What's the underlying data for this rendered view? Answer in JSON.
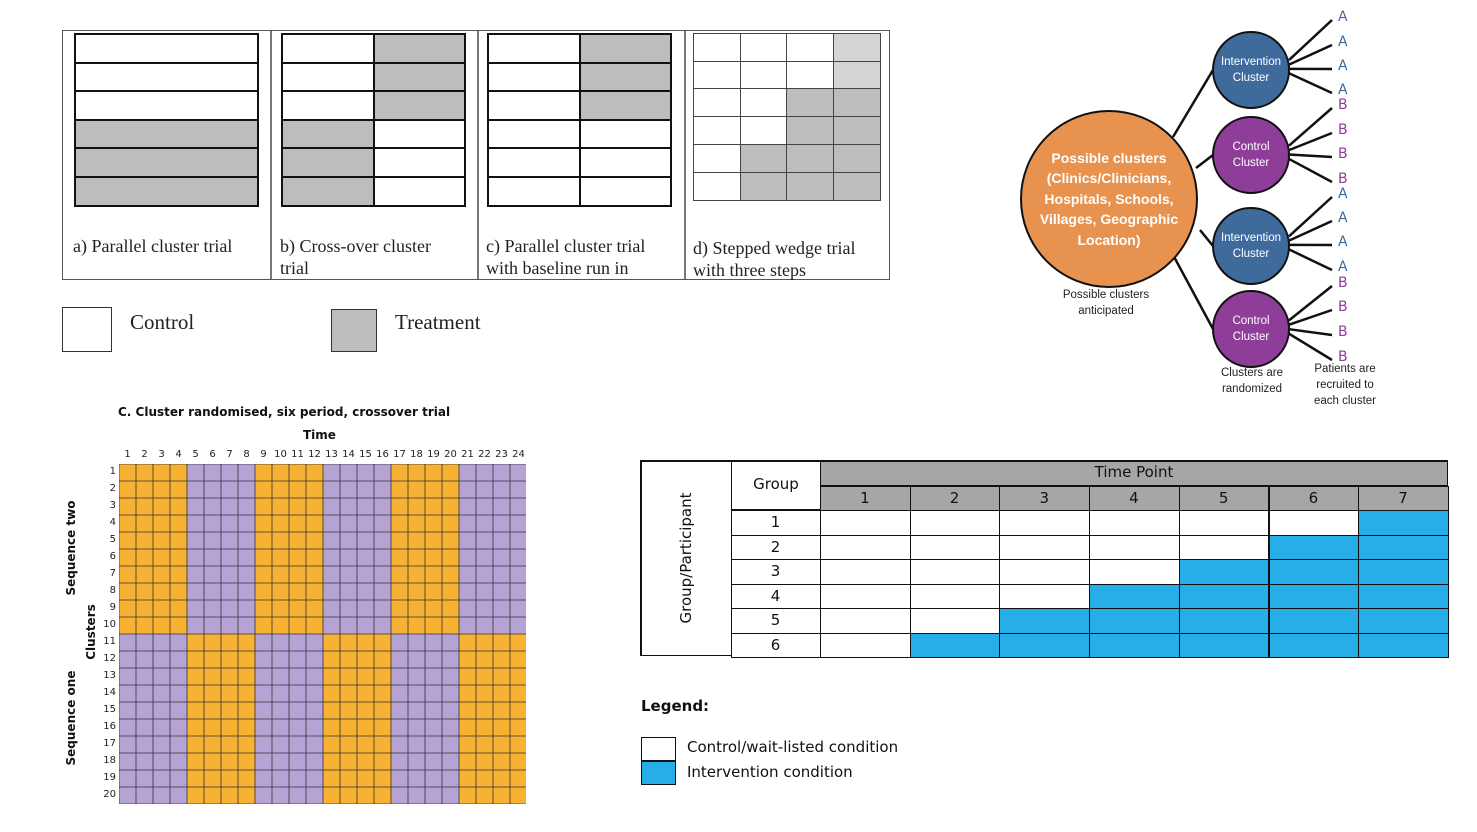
{
  "design_panels": {
    "captions": [
      [
        "a) Parallel cluster trial"
      ],
      [
        "b) Cross-over cluster",
        "trial"
      ],
      [
        "c) Parallel cluster trial",
        "with baseline run in"
      ],
      [
        "d) Stepped wedge trial",
        "with three steps"
      ]
    ],
    "parallel_rows": [
      "C",
      "C",
      "C",
      "T",
      "T",
      "T"
    ],
    "crossover_rows": [
      [
        "C",
        "T"
      ],
      [
        "C",
        "T"
      ],
      [
        "C",
        "T"
      ],
      [
        "T",
        "C"
      ],
      [
        "T",
        "C"
      ],
      [
        "T",
        "C"
      ]
    ],
    "baseline_rows": [
      [
        "C",
        "T"
      ],
      [
        "C",
        "T"
      ],
      [
        "C",
        "T"
      ],
      [
        "C",
        "C"
      ],
      [
        "C",
        "C"
      ],
      [
        "C",
        "C"
      ]
    ],
    "stepped_rows": [
      [
        "C",
        "C",
        "C",
        "T"
      ],
      [
        "C",
        "C",
        "C",
        "T"
      ],
      [
        "C",
        "C",
        "T",
        "T"
      ],
      [
        "C",
        "C",
        "T",
        "T"
      ],
      [
        "C",
        "T",
        "T",
        "T"
      ],
      [
        "C",
        "T",
        "T",
        "T"
      ]
    ],
    "legend": {
      "control": "Control",
      "treatment": "Treatment"
    },
    "colors": {
      "treatment": "#bdbdbd",
      "treatment_light": "#d4d4d4",
      "control": "#ffffff"
    }
  },
  "cluster_tree": {
    "root_label": "Possible clusters (Clinics/Clinicians, Hospitals, Schools, Villages, Geographic Location)",
    "root_caption": [
      "Possible clusters",
      "anticipated"
    ],
    "clusters": [
      {
        "label_lines": [
          "Intervention",
          "Cluster"
        ],
        "kind": "intervention",
        "leaf": "A"
      },
      {
        "label_lines": [
          "Control",
          "Cluster"
        ],
        "kind": "control",
        "leaf": "B"
      },
      {
        "label_lines": [
          "Intervention",
          "Cluster"
        ],
        "kind": "intervention",
        "leaf": "A"
      },
      {
        "label_lines": [
          "Control",
          "Cluster"
        ],
        "kind": "control",
        "leaf": "B"
      }
    ],
    "randomized_caption": [
      "Clusters are",
      "randomized"
    ],
    "patients_caption": [
      "Patients are",
      "recruited to",
      "each cluster"
    ],
    "colors": {
      "root": "#e8924f",
      "intervention": "#3f6b9c",
      "control": "#8e3d99",
      "leaf_a": "#3f6b9c",
      "leaf_b": "#8e3d99"
    }
  },
  "crossover_trial": {
    "title": "C. Cluster randomised, six period, crossover trial",
    "time_label": "Time",
    "clusters_label": "Clusters",
    "sequence_two_label": "Sequence two",
    "sequence_one_label": "Sequence one",
    "time_points": [
      "1",
      "2",
      "3",
      "4",
      "5",
      "6",
      "7",
      "8",
      "9",
      "10",
      "11",
      "12",
      "13",
      "14",
      "15",
      "16",
      "17",
      "18",
      "19",
      "20",
      "21",
      "22",
      "23",
      "24"
    ],
    "cluster_ids": [
      "1",
      "2",
      "3",
      "4",
      "5",
      "6",
      "7",
      "8",
      "9",
      "10",
      "11",
      "12",
      "13",
      "14",
      "15",
      "16",
      "17",
      "18",
      "19",
      "20"
    ],
    "sequence_two_periods": [
      "orange",
      "purple",
      "orange",
      "purple",
      "orange",
      "purple"
    ],
    "sequence_one_periods": [
      "purple",
      "orange",
      "purple",
      "orange",
      "purple",
      "orange"
    ],
    "colors": {
      "orange": "#f7b233",
      "purple": "#b5a3d4"
    }
  },
  "stepped_wedge": {
    "group_header": "Group",
    "time_header": "Time Point",
    "side_label": "Group/Participant",
    "time_points": [
      "1",
      "2",
      "3",
      "4",
      "5",
      "6",
      "7"
    ],
    "groups": [
      "1",
      "2",
      "3",
      "4",
      "5",
      "6"
    ],
    "intervention_start": [
      7,
      6,
      5,
      4,
      3,
      2
    ],
    "legend_title": "Legend:",
    "legend_control": "Control/wait-listed condition",
    "legend_intervention": "Intervention condition",
    "colors": {
      "intervention": "#27aee8",
      "header": "#a6a6a6",
      "control": "#ffffff"
    }
  }
}
